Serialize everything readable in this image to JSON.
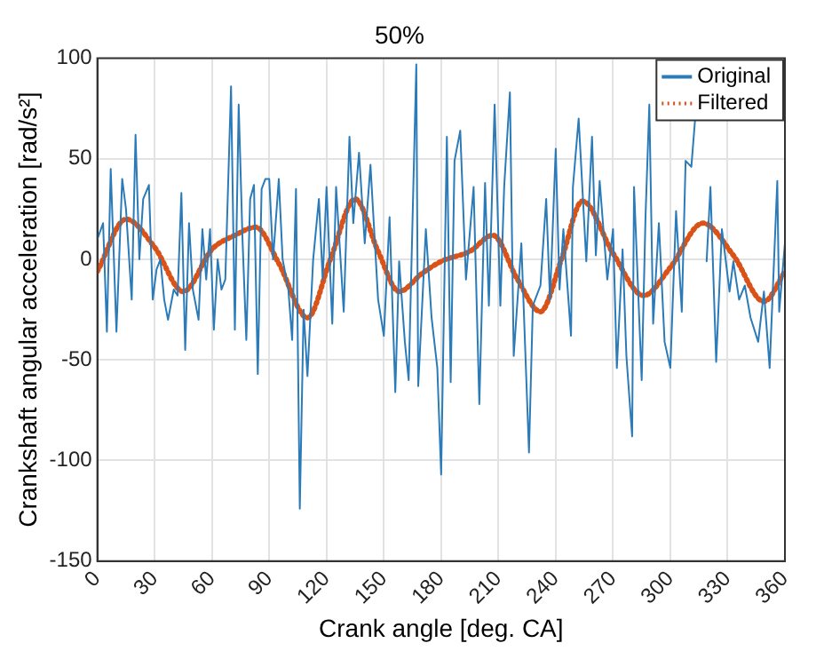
{
  "chart_data": {
    "type": "line",
    "title": "50%",
    "xlabel": "Crank angle [deg. CA]",
    "ylabel": "Crankshaft angular acceleration [rad/s²]",
    "xlim": [
      0,
      360
    ],
    "xticks": [
      0,
      30,
      60,
      90,
      120,
      150,
      180,
      210,
      240,
      270,
      300,
      330,
      360
    ],
    "ylim": [
      -150,
      100
    ],
    "yticks": [
      -150,
      -100,
      -50,
      0,
      50,
      100
    ],
    "grid": true,
    "legend": "top right",
    "marker": "none",
    "series": [
      {
        "name": "Original",
        "color": "#2b7bb9",
        "line_style": "solid",
        "x": [
          0,
          3,
          5,
          7,
          10,
          13,
          15,
          18,
          20,
          22,
          24,
          27,
          29,
          31,
          33,
          35,
          37,
          40,
          42,
          44,
          46,
          48,
          50,
          53,
          55,
          57,
          59,
          61,
          63,
          65,
          67,
          70,
          72,
          74,
          76,
          78,
          80,
          82,
          84,
          86,
          88,
          90,
          92,
          95,
          97,
          100,
          102,
          104,
          106,
          108,
          110,
          113,
          116,
          118,
          120,
          123,
          125,
          129,
          132,
          134,
          137,
          140,
          143,
          147,
          150,
          153,
          156,
          158,
          161,
          163,
          167,
          168,
          172,
          175,
          178,
          180,
          183,
          185,
          187,
          190,
          193,
          197,
          200,
          203,
          205,
          208,
          211,
          213,
          216,
          218,
          222,
          226,
          228,
          232,
          235,
          237,
          240,
          242,
          244,
          248,
          249,
          252,
          256,
          259,
          261,
          263,
          267,
          270,
          272,
          275,
          277,
          280,
          281,
          285,
          287,
          289,
          291,
          294,
          297,
          300,
          303,
          306,
          308,
          311,
          313,
          316,
          319,
          321,
          324,
          327,
          331,
          333,
          336,
          339,
          342,
          346,
          349,
          352,
          356,
          357,
          360
        ],
        "values": [
          10,
          18,
          -36,
          45,
          -36,
          40,
          25,
          -20,
          62,
          0,
          30,
          37,
          -20,
          -5,
          0,
          -20,
          -30,
          -15,
          -18,
          33,
          -45,
          18,
          -15,
          -30,
          15,
          -10,
          15,
          -35,
          0,
          -15,
          -10,
          86,
          -35,
          77,
          10,
          -40,
          30,
          37,
          -57,
          35,
          40,
          40,
          0,
          40,
          0,
          -15,
          -40,
          35,
          -124,
          -25,
          -58,
          0,
          30,
          -10,
          36,
          -32,
          36,
          -26,
          61,
          18,
          53,
          8,
          47,
          -20,
          -38,
          21,
          -66,
          -1,
          -41,
          -60,
          97,
          -63,
          15,
          -29,
          -54,
          -107,
          61,
          -61,
          49,
          64,
          -10,
          36,
          -72,
          38,
          -23,
          77,
          -23,
          36,
          83,
          -48,
          8,
          -96,
          -23,
          -13,
          30,
          -20,
          55,
          -15,
          15,
          -38,
          36,
          70,
          -1,
          61,
          2,
          39,
          -10,
          15,
          -54,
          5,
          -48,
          -88,
          36,
          -60,
          21,
          77,
          -32,
          18,
          -41,
          -54,
          24,
          -26,
          49,
          46,
          70,
          null,
          -1,
          36,
          -51,
          15,
          -16,
          -1,
          -20,
          -13,
          -29,
          -41,
          -16,
          -54,
          39,
          -26,
          8
        ]
      },
      {
        "name": "Filtered",
        "color": "#d95319",
        "line_style": "dotted",
        "x": [
          0,
          15,
          30,
          45,
          60,
          72,
          83,
          95,
          110,
          122,
          135,
          147,
          158,
          170,
          180,
          195,
          207,
          220,
          232,
          243,
          254,
          270,
          286,
          300,
          317,
          333,
          349,
          360
        ],
        "values": [
          -6,
          20,
          6,
          -16,
          5,
          12,
          16,
          -2,
          -29,
          0,
          30,
          4,
          -16,
          -7,
          -1,
          4,
          12,
          -10,
          -26,
          0,
          29,
          3,
          -18,
          -4,
          18,
          2,
          -21,
          -6
        ]
      }
    ]
  }
}
